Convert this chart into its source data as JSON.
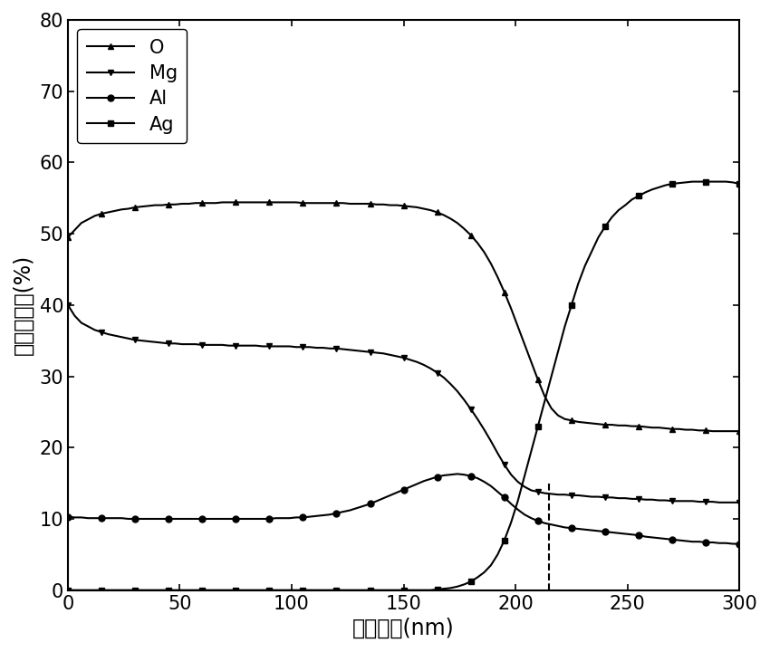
{
  "title": "",
  "xlabel": "藄膜厚度(nm)",
  "ylabel": "原子百分比(%)",
  "xlim": [
    0,
    300
  ],
  "ylim": [
    0,
    80
  ],
  "xticks": [
    0,
    50,
    100,
    150,
    200,
    250,
    300
  ],
  "yticks": [
    0,
    10,
    20,
    30,
    40,
    50,
    60,
    70,
    80
  ],
  "dashed_x": 215,
  "series": {
    "O": {
      "x": [
        0,
        3,
        6,
        9,
        12,
        15,
        18,
        21,
        24,
        27,
        30,
        33,
        36,
        39,
        42,
        45,
        48,
        51,
        54,
        57,
        60,
        63,
        66,
        69,
        72,
        75,
        78,
        81,
        84,
        87,
        90,
        93,
        96,
        99,
        102,
        105,
        108,
        111,
        114,
        117,
        120,
        123,
        126,
        129,
        132,
        135,
        138,
        141,
        144,
        147,
        150,
        153,
        156,
        159,
        162,
        165,
        168,
        171,
        174,
        177,
        180,
        183,
        186,
        189,
        192,
        195,
        198,
        201,
        204,
        207,
        210,
        213,
        216,
        219,
        222,
        225,
        228,
        231,
        234,
        237,
        240,
        243,
        246,
        249,
        252,
        255,
        258,
        261,
        264,
        267,
        270,
        273,
        276,
        279,
        282,
        285,
        288,
        291,
        294,
        297,
        300
      ],
      "y": [
        49.5,
        50.5,
        51.5,
        52.0,
        52.5,
        52.8,
        53.0,
        53.2,
        53.4,
        53.5,
        53.7,
        53.8,
        53.9,
        54.0,
        54.0,
        54.1,
        54.1,
        54.2,
        54.2,
        54.3,
        54.3,
        54.3,
        54.3,
        54.4,
        54.4,
        54.4,
        54.4,
        54.4,
        54.4,
        54.4,
        54.4,
        54.4,
        54.4,
        54.4,
        54.4,
        54.3,
        54.3,
        54.3,
        54.3,
        54.3,
        54.3,
        54.3,
        54.2,
        54.2,
        54.2,
        54.2,
        54.1,
        54.1,
        54.0,
        54.0,
        53.9,
        53.8,
        53.7,
        53.5,
        53.3,
        53.0,
        52.6,
        52.1,
        51.5,
        50.7,
        49.8,
        48.7,
        47.4,
        45.8,
        43.9,
        41.8,
        39.5,
        37.0,
        34.5,
        32.0,
        29.5,
        27.2,
        25.5,
        24.5,
        24.0,
        23.8,
        23.6,
        23.5,
        23.4,
        23.3,
        23.2,
        23.2,
        23.1,
        23.1,
        23.0,
        23.0,
        22.9,
        22.8,
        22.8,
        22.7,
        22.6,
        22.6,
        22.5,
        22.5,
        22.4,
        22.4,
        22.3,
        22.3,
        22.3,
        22.3,
        22.3
      ],
      "marker": "^",
      "color": "#000000",
      "label": "O"
    },
    "Mg": {
      "x": [
        0,
        3,
        6,
        9,
        12,
        15,
        18,
        21,
        24,
        27,
        30,
        33,
        36,
        39,
        42,
        45,
        48,
        51,
        54,
        57,
        60,
        63,
        66,
        69,
        72,
        75,
        78,
        81,
        84,
        87,
        90,
        93,
        96,
        99,
        102,
        105,
        108,
        111,
        114,
        117,
        120,
        123,
        126,
        129,
        132,
        135,
        138,
        141,
        144,
        147,
        150,
        153,
        156,
        159,
        162,
        165,
        168,
        171,
        174,
        177,
        180,
        183,
        186,
        189,
        192,
        195,
        198,
        201,
        204,
        207,
        210,
        213,
        216,
        219,
        222,
        225,
        228,
        231,
        234,
        237,
        240,
        243,
        246,
        249,
        252,
        255,
        258,
        261,
        264,
        267,
        270,
        273,
        276,
        279,
        282,
        285,
        288,
        291,
        294,
        297,
        300
      ],
      "y": [
        40.0,
        38.5,
        37.5,
        37.0,
        36.5,
        36.2,
        35.9,
        35.7,
        35.5,
        35.3,
        35.1,
        35.0,
        34.9,
        34.8,
        34.7,
        34.6,
        34.6,
        34.5,
        34.5,
        34.5,
        34.4,
        34.4,
        34.4,
        34.4,
        34.3,
        34.3,
        34.3,
        34.3,
        34.3,
        34.2,
        34.2,
        34.2,
        34.2,
        34.2,
        34.1,
        34.1,
        34.1,
        34.0,
        34.0,
        33.9,
        33.9,
        33.8,
        33.7,
        33.6,
        33.5,
        33.4,
        33.3,
        33.2,
        33.0,
        32.8,
        32.6,
        32.3,
        32.0,
        31.6,
        31.1,
        30.5,
        29.8,
        28.9,
        27.9,
        26.7,
        25.4,
        24.0,
        22.5,
        20.9,
        19.2,
        17.6,
        16.2,
        15.2,
        14.5,
        14.0,
        13.8,
        13.6,
        13.5,
        13.4,
        13.4,
        13.3,
        13.3,
        13.2,
        13.1,
        13.1,
        13.0,
        13.0,
        12.9,
        12.9,
        12.8,
        12.8,
        12.7,
        12.7,
        12.6,
        12.6,
        12.5,
        12.5,
        12.5,
        12.5,
        12.4,
        12.4,
        12.4,
        12.3,
        12.3,
        12.3,
        12.3
      ],
      "marker": "v",
      "color": "#000000",
      "label": "Mg"
    },
    "Al": {
      "x": [
        0,
        3,
        6,
        9,
        12,
        15,
        18,
        21,
        24,
        27,
        30,
        33,
        36,
        39,
        42,
        45,
        48,
        51,
        54,
        57,
        60,
        63,
        66,
        69,
        72,
        75,
        78,
        81,
        84,
        87,
        90,
        93,
        96,
        99,
        102,
        105,
        108,
        111,
        114,
        117,
        120,
        123,
        126,
        129,
        132,
        135,
        138,
        141,
        144,
        147,
        150,
        153,
        156,
        159,
        162,
        165,
        168,
        171,
        174,
        177,
        180,
        183,
        186,
        189,
        192,
        195,
        198,
        201,
        204,
        207,
        210,
        213,
        216,
        219,
        222,
        225,
        228,
        231,
        234,
        237,
        240,
        243,
        246,
        249,
        252,
        255,
        258,
        261,
        264,
        267,
        270,
        273,
        276,
        279,
        282,
        285,
        288,
        291,
        294,
        297,
        300
      ],
      "y": [
        10.3,
        10.2,
        10.2,
        10.1,
        10.1,
        10.1,
        10.1,
        10.1,
        10.1,
        10.0,
        10.0,
        10.0,
        10.0,
        10.0,
        10.0,
        10.0,
        10.0,
        10.0,
        10.0,
        10.0,
        10.0,
        10.0,
        10.0,
        10.0,
        10.0,
        10.0,
        10.0,
        10.0,
        10.0,
        10.0,
        10.0,
        10.1,
        10.1,
        10.1,
        10.2,
        10.2,
        10.3,
        10.4,
        10.5,
        10.6,
        10.8,
        11.0,
        11.2,
        11.5,
        11.8,
        12.1,
        12.5,
        12.9,
        13.3,
        13.7,
        14.1,
        14.5,
        14.9,
        15.3,
        15.6,
        15.9,
        16.1,
        16.2,
        16.3,
        16.2,
        16.0,
        15.7,
        15.2,
        14.6,
        13.8,
        13.0,
        12.1,
        11.3,
        10.6,
        10.1,
        9.7,
        9.4,
        9.2,
        9.0,
        8.8,
        8.7,
        8.6,
        8.5,
        8.4,
        8.3,
        8.2,
        8.1,
        8.0,
        7.9,
        7.8,
        7.7,
        7.5,
        7.4,
        7.3,
        7.2,
        7.1,
        7.0,
        6.9,
        6.8,
        6.8,
        6.7,
        6.7,
        6.6,
        6.6,
        6.5,
        6.5
      ],
      "marker": "o",
      "color": "#000000",
      "label": "Al"
    },
    "Ag": {
      "x": [
        0,
        3,
        6,
        9,
        12,
        15,
        18,
        21,
        24,
        27,
        30,
        33,
        36,
        39,
        42,
        45,
        48,
        51,
        54,
        57,
        60,
        63,
        66,
        69,
        72,
        75,
        78,
        81,
        84,
        87,
        90,
        93,
        96,
        99,
        102,
        105,
        108,
        111,
        114,
        117,
        120,
        123,
        126,
        129,
        132,
        135,
        138,
        141,
        144,
        147,
        150,
        153,
        156,
        159,
        162,
        165,
        168,
        171,
        174,
        177,
        180,
        183,
        186,
        189,
        192,
        195,
        198,
        201,
        204,
        207,
        210,
        213,
        216,
        219,
        222,
        225,
        228,
        231,
        234,
        237,
        240,
        243,
        246,
        249,
        252,
        255,
        258,
        261,
        264,
        267,
        270,
        273,
        276,
        279,
        282,
        285,
        288,
        291,
        294,
        297,
        300
      ],
      "y": [
        0.0,
        0.0,
        0.0,
        0.0,
        0.0,
        0.0,
        0.0,
        0.0,
        0.0,
        0.0,
        0.0,
        0.0,
        0.0,
        0.0,
        0.0,
        0.0,
        0.0,
        0.0,
        0.0,
        0.0,
        0.0,
        0.0,
        0.0,
        0.0,
        0.0,
        0.0,
        0.0,
        0.0,
        0.0,
        0.0,
        0.0,
        0.0,
        0.0,
        0.0,
        0.0,
        0.0,
        0.0,
        0.0,
        0.0,
        0.0,
        0.0,
        0.0,
        0.0,
        0.0,
        0.0,
        0.0,
        0.0,
        0.0,
        0.0,
        0.0,
        0.0,
        0.0,
        0.0,
        0.0,
        0.0,
        0.1,
        0.2,
        0.3,
        0.5,
        0.8,
        1.2,
        1.8,
        2.5,
        3.5,
        5.0,
        7.0,
        9.5,
        12.5,
        16.0,
        19.5,
        23.0,
        26.5,
        30.0,
        33.5,
        37.0,
        40.0,
        43.0,
        45.5,
        47.5,
        49.5,
        51.0,
        52.3,
        53.3,
        54.0,
        54.8,
        55.3,
        55.8,
        56.2,
        56.5,
        56.8,
        57.0,
        57.1,
        57.2,
        57.3,
        57.3,
        57.3,
        57.3,
        57.3,
        57.3,
        57.2,
        57.0
      ],
      "marker": "s",
      "color": "#000000",
      "label": "Ag"
    }
  },
  "background_color": "#ffffff",
  "legend_fontsize": 15,
  "axis_fontsize": 17,
  "tick_fontsize": 15,
  "marker_size": 5,
  "line_width": 1.5,
  "marker_every": 5
}
